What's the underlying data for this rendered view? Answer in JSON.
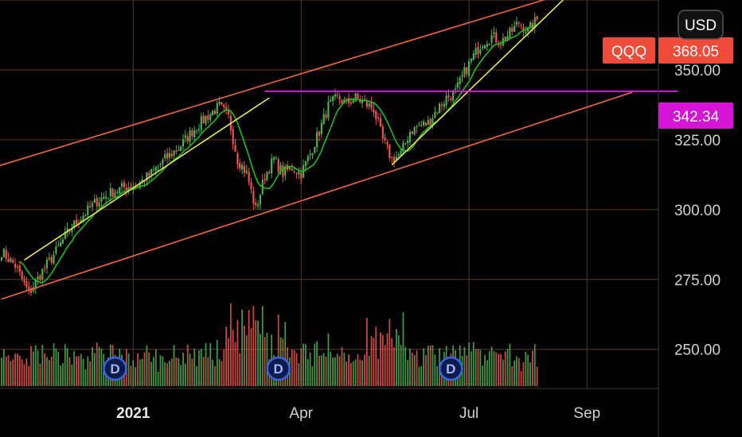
{
  "chart_data": {
    "type": "candlestick",
    "symbol": "QQQ",
    "currency": "USD",
    "last_price": "368.05",
    "level_price": "342.34",
    "y_axis": {
      "ticks": [
        "350.00",
        "325.00",
        "300.00",
        "275.00",
        "250.00"
      ],
      "range": [
        236,
        375
      ]
    },
    "x_axis": {
      "ticks": [
        "2021",
        "Apr",
        "Jul",
        "Sep"
      ]
    },
    "dividend_markers": [
      "D",
      "D",
      "D"
    ],
    "colors": {
      "up": "#4caf50",
      "down": "#ef5350",
      "ma": "#19c119",
      "channel": "#f0693c",
      "trendline": "#e6e653",
      "level": "#e020e0",
      "grid": "#5a3a1a",
      "symbol_tag": "#f04a3a",
      "level_tag": "#d514d5"
    },
    "anchors": [
      {
        "t": 0,
        "p": 285
      },
      {
        "t": 6,
        "p": 280
      },
      {
        "t": 12,
        "p": 270
      },
      {
        "t": 18,
        "p": 278
      },
      {
        "t": 24,
        "p": 285
      },
      {
        "t": 30,
        "p": 293
      },
      {
        "t": 36,
        "p": 298
      },
      {
        "t": 42,
        "p": 303
      },
      {
        "t": 48,
        "p": 306
      },
      {
        "t": 54,
        "p": 308
      },
      {
        "t": 60,
        "p": 309
      },
      {
        "t": 66,
        "p": 313
      },
      {
        "t": 72,
        "p": 318
      },
      {
        "t": 78,
        "p": 322
      },
      {
        "t": 84,
        "p": 328
      },
      {
        "t": 90,
        "p": 333
      },
      {
        "t": 96,
        "p": 337
      },
      {
        "t": 100,
        "p": 333
      },
      {
        "t": 104,
        "p": 318
      },
      {
        "t": 108,
        "p": 313
      },
      {
        "t": 112,
        "p": 300
      },
      {
        "t": 116,
        "p": 312
      },
      {
        "t": 120,
        "p": 318
      },
      {
        "t": 124,
        "p": 313
      },
      {
        "t": 128,
        "p": 315
      },
      {
        "t": 132,
        "p": 313
      },
      {
        "t": 136,
        "p": 320
      },
      {
        "t": 140,
        "p": 328
      },
      {
        "t": 144,
        "p": 337
      },
      {
        "t": 148,
        "p": 340
      },
      {
        "t": 152,
        "p": 338
      },
      {
        "t": 156,
        "p": 340
      },
      {
        "t": 160,
        "p": 338
      },
      {
        "t": 164,
        "p": 336
      },
      {
        "t": 168,
        "p": 325
      },
      {
        "t": 172,
        "p": 318
      },
      {
        "t": 176,
        "p": 320
      },
      {
        "t": 180,
        "p": 328
      },
      {
        "t": 184,
        "p": 330
      },
      {
        "t": 188,
        "p": 331
      },
      {
        "t": 192,
        "p": 336
      },
      {
        "t": 196,
        "p": 340
      },
      {
        "t": 200,
        "p": 342
      },
      {
        "t": 204,
        "p": 349
      },
      {
        "t": 208,
        "p": 355
      },
      {
        "t": 212,
        "p": 360
      },
      {
        "t": 216,
        "p": 362
      },
      {
        "t": 220,
        "p": 360
      },
      {
        "t": 224,
        "p": 363
      },
      {
        "t": 228,
        "p": 367
      },
      {
        "t": 232,
        "p": 364
      },
      {
        "t": 236,
        "p": 368
      }
    ],
    "drawings": {
      "channel_upper": [
        {
          "t": -8,
          "p": 314
        },
        {
          "t": 255,
          "p": 379
        }
      ],
      "channel_lower": [
        {
          "t": 0,
          "p": 268
        },
        {
          "t": 278,
          "p": 342
        }
      ],
      "trend_1": [
        {
          "t": 10,
          "p": 282
        },
        {
          "t": 118,
          "p": 340
        }
      ],
      "trend_2": [
        {
          "t": 172,
          "p": 316
        },
        {
          "t": 250,
          "p": 377
        }
      ],
      "level": [
        {
          "t": 116,
          "p": 342.34
        },
        {
          "t": 298,
          "p": 342.34
        }
      ]
    },
    "time_ticks": [
      {
        "label": "2021",
        "t": 58
      },
      {
        "label": "Apr",
        "t": 132
      },
      {
        "label": "Jul",
        "t": 206
      },
      {
        "label": "Sep",
        "t": 258
      }
    ],
    "dividend_times": [
      50,
      122,
      198
    ]
  }
}
